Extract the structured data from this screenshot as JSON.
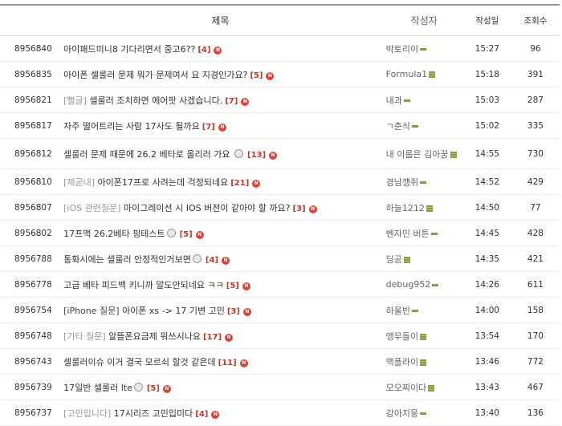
{
  "headers": {
    "title": "제목",
    "author": "작성자",
    "date": "작성일",
    "views": "조회수"
  },
  "new_badge": "N",
  "colors": {
    "comment": "#c0392b",
    "new_badge": "#d9443a",
    "level_icon": "#8b9a3e"
  },
  "rows": [
    {
      "num": "8956840",
      "cat": "",
      "title": "아이패드미니8 기다리면서 중고6??",
      "emoji": false,
      "comments": "[4]",
      "author": "박토리이",
      "level": "bar",
      "date": "15:27",
      "views": "96"
    },
    {
      "num": "8956835",
      "cat": "",
      "title": "아이폰 셀룰러 문제 뭐가 문제여서 요 지경인가요?",
      "emoji": false,
      "comments": "[5]",
      "author": "Formula1",
      "level": "box",
      "date": "15:18",
      "views": "391"
    },
    {
      "num": "8956821",
      "cat": "[뻘글]",
      "title": "셀룰러 조치하면 에어팟 사겠습니다.",
      "emoji": false,
      "comments": "[7]",
      "author": "내과",
      "level": "bar",
      "date": "15:03",
      "views": "287"
    },
    {
      "num": "8956817",
      "cat": "",
      "title": "자주 떨어트리는 사람 17사도 될까요",
      "emoji": false,
      "comments": "[7]",
      "author": "ㄱ춘식",
      "level": "bar",
      "date": "15:02",
      "views": "335"
    },
    {
      "num": "8956812",
      "cat": "",
      "title": "셀룰러 문제 때문에 26.2 베타로 올리러 가요 ",
      "emoji": true,
      "comments": "[13]",
      "author": "내 이름은 김아꿍",
      "level": "box",
      "date": "14:55",
      "views": "730",
      "tall": true
    },
    {
      "num": "8956810",
      "cat": "[제곧내]",
      "title": "아이폰17프로 사려는데 걱정되네요",
      "emoji": false,
      "comments": "[21]",
      "author": "경남꺵쥐",
      "level": "bar",
      "date": "14:52",
      "views": "429"
    },
    {
      "num": "8956807",
      "cat": "[iOS 관련질문]",
      "title": "마이그레이션 시 IOS 버전이 같아야 할 까요?",
      "emoji": false,
      "comments": "[3]",
      "author": "하늘1212",
      "level": "box",
      "date": "14:50",
      "views": "77"
    },
    {
      "num": "8956802",
      "cat": "",
      "title": "17프맥 26.2베타 핑테스트",
      "emoji": true,
      "comments": "[5]",
      "author": "벤자민 버튼",
      "level": "bar",
      "date": "14:45",
      "views": "428"
    },
    {
      "num": "8956788",
      "cat": "",
      "title": "통화시에는 셀룰러 안정적인거보면",
      "emoji": true,
      "comments": "[4]",
      "author": "딩공",
      "level": "box",
      "date": "14:35",
      "views": "421"
    },
    {
      "num": "8956778",
      "cat": "",
      "title": "고급 베타 피드백 키니까 말도안되네요 ㅋㅋ",
      "emoji": false,
      "comments": "[5]",
      "author": "debug952",
      "level": "bar",
      "date": "14:26",
      "views": "611"
    },
    {
      "num": "8956754",
      "cat": "[iPhone 질문]",
      "catDark": true,
      "title": "아이폰 xs -> 17 기변 고민",
      "emoji": false,
      "comments": "[3]",
      "author": "하울빈",
      "level": "bar",
      "date": "14:00",
      "views": "158"
    },
    {
      "num": "8956748",
      "cat": "[기타 질문]",
      "title": "알뜰폰요금제 뭐쓰시나요",
      "emoji": false,
      "comments": "[17]",
      "author": "앵무돌이",
      "level": "box",
      "date": "13:54",
      "views": "170"
    },
    {
      "num": "8956743",
      "cat": "",
      "title": "셀룰러이슈 이거 결국 모르쇠 할것 같은데",
      "emoji": false,
      "comments": "[11]",
      "author": "맥플라이",
      "level": "box",
      "date": "13:46",
      "views": "772"
    },
    {
      "num": "8956739",
      "cat": "",
      "title": "17일반 셀룰러 lte",
      "emoji": true,
      "comments": "[5]",
      "author": "모오찌이다",
      "level": "box",
      "date": "13:43",
      "views": "467"
    },
    {
      "num": "8956737",
      "cat": "[고민입니다]",
      "title": "17시리즈 고민입미다",
      "emoji": false,
      "comments": "[4]",
      "author": "강아지뭉",
      "level": "bar",
      "date": "13:40",
      "views": "136"
    }
  ]
}
